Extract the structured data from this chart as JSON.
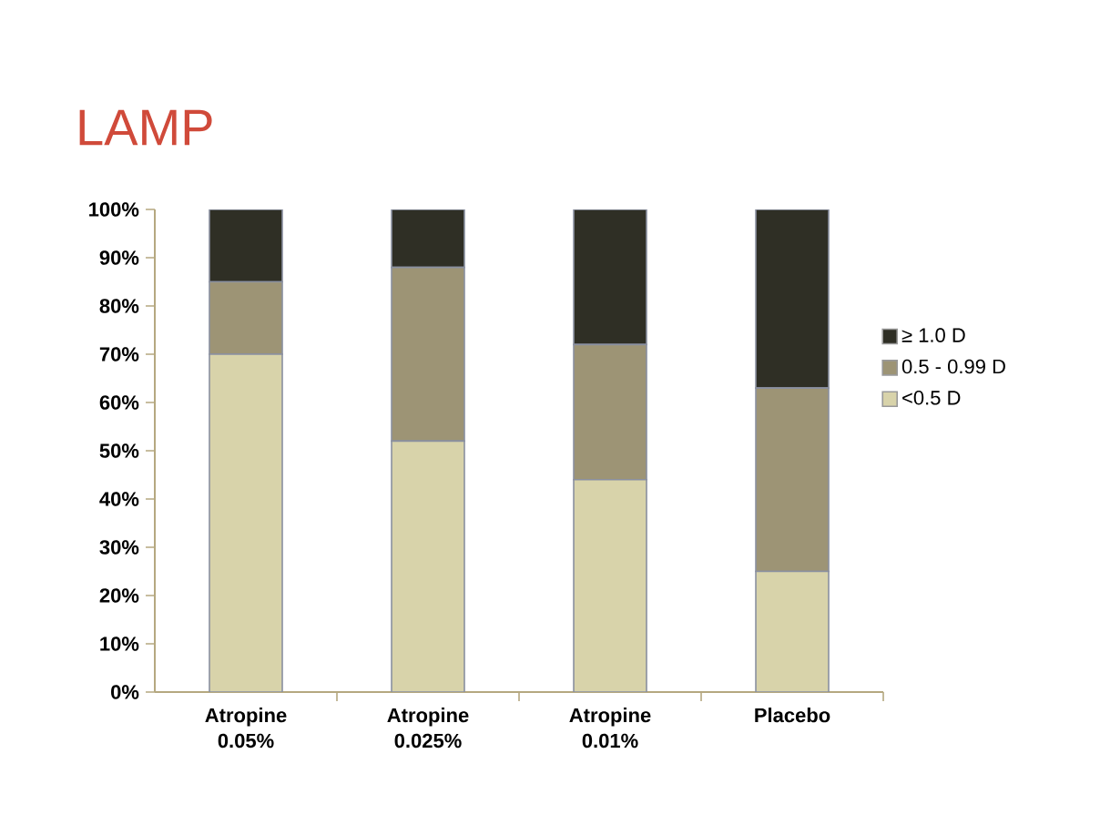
{
  "chart_data": {
    "type": "bar",
    "stacked": true,
    "title": "LAMP",
    "categories": [
      "Atropine 0.05%",
      "Atropine 0.025%",
      "Atropine 0.01%",
      "Placebo"
    ],
    "series": [
      {
        "name": "<0.5 D",
        "color": "#d8d3aa",
        "values": [
          70,
          52,
          44,
          25
        ]
      },
      {
        "name": "0.5 - 0.99 D",
        "color": "#9d9475",
        "values": [
          15,
          36,
          28,
          38
        ]
      },
      {
        "name": "≥ 1.0 D",
        "color": "#2f2f25",
        "values": [
          15,
          12,
          28,
          37
        ]
      }
    ],
    "ylim": [
      0,
      100
    ],
    "yticks": [
      {
        "value": 0,
        "label": "0%"
      },
      {
        "value": 10,
        "label": "10%"
      },
      {
        "value": 20,
        "label": "20%"
      },
      {
        "value": 30,
        "label": "30%"
      },
      {
        "value": 40,
        "label": "40%"
      },
      {
        "value": 50,
        "label": "50%"
      },
      {
        "value": 60,
        "label": "60%"
      },
      {
        "value": 70,
        "label": "70%"
      },
      {
        "value": 80,
        "label": "80%"
      },
      {
        "value": 90,
        "label": "90%"
      },
      {
        "value": 100,
        "label": "100%"
      }
    ],
    "legend": "right",
    "grid": false
  }
}
